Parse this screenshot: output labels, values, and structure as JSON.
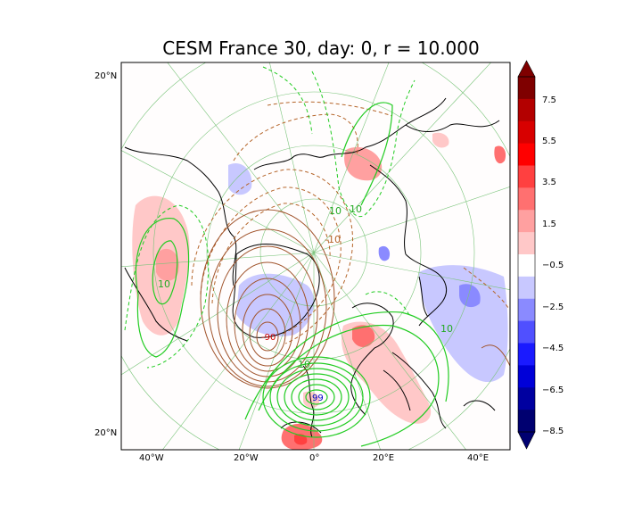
{
  "title": "CESM France 30, day: 0, r = 10.000",
  "map": {
    "projection": "north-polar-stereographic",
    "lat_labels": [
      "20°N",
      "20°N"
    ],
    "lon_labels": [
      "40°W",
      "20°W",
      "0°",
      "20°E",
      "40°E"
    ],
    "contour_labels": [
      "10",
      "-10",
      "-90",
      "99",
      "10",
      "10",
      "10",
      "10"
    ],
    "colors": {
      "positive_line": "#22cc22",
      "negative_line": "#b5652a",
      "coast": "#000000",
      "grid": "#7ac47a"
    }
  },
  "colorbar": {
    "ticks": [
      "7.5",
      "5.5",
      "3.5",
      "1.5",
      "−0.5",
      "−2.5",
      "−4.5",
      "−6.5",
      "−8.5"
    ],
    "colors": [
      "#7f0000",
      "#b30000",
      "#d80000",
      "#ff0000",
      "#ff4040",
      "#ff7070",
      "#ffa0a0",
      "#ffc8c8",
      "#ffffff",
      "#c8c8ff",
      "#8a8aff",
      "#5050ff",
      "#1a1aff",
      "#0000d8",
      "#0000a0",
      "#000070"
    ],
    "extend": "both"
  }
}
